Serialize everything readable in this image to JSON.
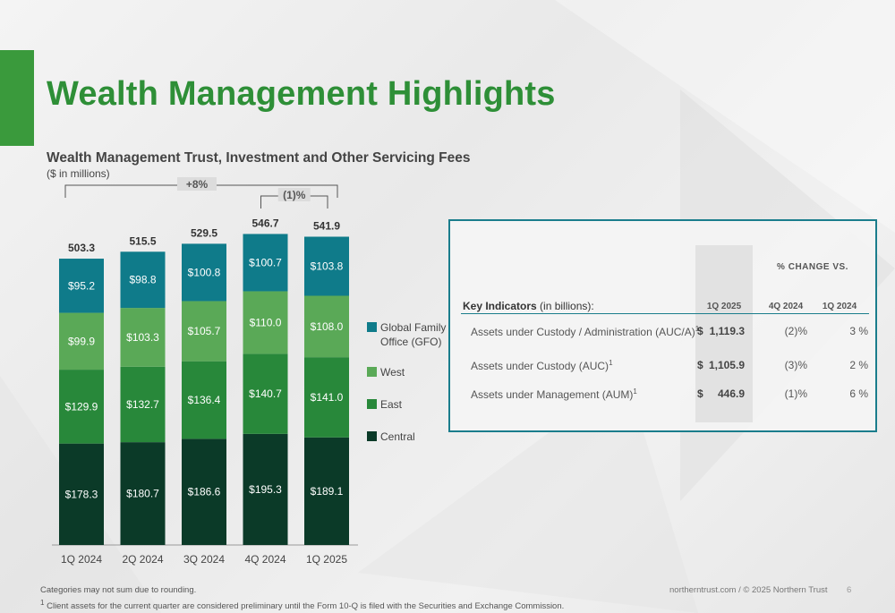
{
  "page": {
    "title": "Wealth Management Highlights",
    "footnote_rounding": "Categories may not sum due to rounding.",
    "footnote_preliminary": "Client assets for the current quarter are considered preliminary until the Form 10-Q is filed with the Securities and Exchange Commission.",
    "footnote_marker": "1",
    "footer_site": "northerntrust.com / © 2025 Northern Trust",
    "page_number": "6"
  },
  "colors": {
    "title_green": "#2e8f37",
    "gfo": "#0f7b8a",
    "west": "#5aa957",
    "east": "#28883a",
    "central": "#0b3a28",
    "box_border": "#1a7d8c"
  },
  "chart_data": {
    "type": "bar",
    "stacked": true,
    "title": "Wealth Management Trust, Investment and Other Servicing Fees",
    "subtitle": "($ in millions)",
    "categories": [
      "1Q 2024",
      "2Q 2024",
      "3Q 2024",
      "4Q 2024",
      "1Q 2025"
    ],
    "series": [
      {
        "name": "Central",
        "values": [
          178.3,
          180.7,
          186.6,
          195.3,
          189.1
        ],
        "labels": [
          "$178.3",
          "$180.7",
          "$186.6",
          "$195.3",
          "$189.1"
        ]
      },
      {
        "name": "East",
        "values": [
          129.9,
          132.7,
          136.4,
          140.7,
          141.0
        ],
        "labels": [
          "$129.9",
          "$132.7",
          "$136.4",
          "$140.7",
          "$141.0"
        ]
      },
      {
        "name": "West",
        "values": [
          99.9,
          103.3,
          105.7,
          110.0,
          108.0
        ],
        "labels": [
          "$99.9",
          "$103.3",
          "$105.7",
          "$110.0",
          "$108.0"
        ]
      },
      {
        "name": "Global Family Office (GFO)",
        "values": [
          95.2,
          98.8,
          100.8,
          100.7,
          103.8
        ],
        "labels": [
          "$95.2",
          "$98.8",
          "$100.8",
          "$100.7",
          "$103.8"
        ]
      }
    ],
    "totals": [
      503.3,
      515.5,
      529.5,
      546.7,
      541.9
    ],
    "total_labels": [
      "503.3",
      "515.5",
      "529.5",
      "546.7",
      "541.9"
    ],
    "legend": [
      "Global Family",
      "Office (GFO)",
      "West",
      "East",
      "Central"
    ],
    "legend_placement": "right",
    "annotations": [
      {
        "label": "+8%",
        "from": "1Q 2024",
        "to": "1Q 2025"
      },
      {
        "label": "(1)%",
        "from": "4Q 2024",
        "to": "1Q 2025"
      }
    ],
    "ylim": [
      0,
      560
    ],
    "grid": false
  },
  "key_indicators": {
    "header_bold": "Key Indicators",
    "header_rest": " (in billions):",
    "pct_change_header": "% CHANGE VS.",
    "col_current": "1Q 2025",
    "col_prev_q": "4Q 2024",
    "col_prev_y": "1Q 2024",
    "rows": [
      {
        "label": "Assets under Custody / Administration (AUC/A)",
        "sup": "1",
        "currency": "$",
        "value": "1,119.3",
        "chg_q": "(2)%",
        "chg_y": "3 %"
      },
      {
        "label": "Assets under Custody (AUC)",
        "sup": "1",
        "currency": "$",
        "value": "1,105.9",
        "chg_q": "(3)%",
        "chg_y": "2 %"
      },
      {
        "label": "Assets under Management (AUM)",
        "sup": "1",
        "currency": "$",
        "value": "446.9",
        "chg_q": "(1)%",
        "chg_y": "6 %"
      }
    ]
  }
}
